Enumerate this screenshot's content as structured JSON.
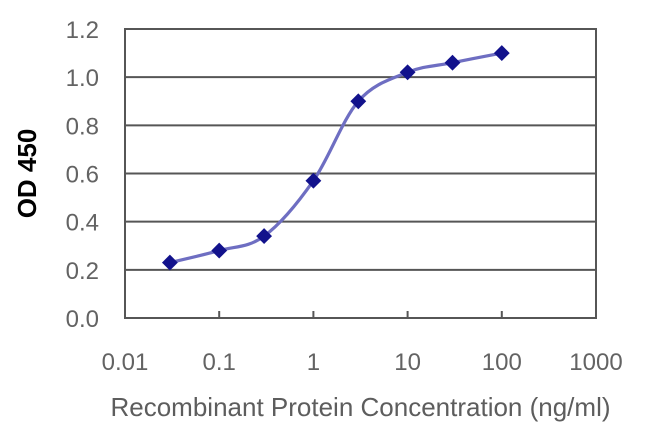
{
  "figure": {
    "background": "#ffffff"
  },
  "chart_data": {
    "type": "line",
    "title": "",
    "xlabel": "Recombinant Protein Concentration (ng/ml)",
    "ylabel": "OD 450",
    "x_scale": "log",
    "xlim": [
      0.01,
      1000
    ],
    "ylim": [
      0.0,
      1.2
    ],
    "x_tick_labels": [
      "0.01",
      "0.1",
      "1",
      "10",
      "100",
      "1000"
    ],
    "x_tick_values": [
      0.01,
      0.1,
      1,
      10,
      100,
      1000
    ],
    "y_tick_labels": [
      "0.0",
      "0.2",
      "0.4",
      "0.6",
      "0.8",
      "1.0",
      "1.2"
    ],
    "y_tick_values": [
      0.0,
      0.2,
      0.4,
      0.6,
      0.8,
      1.0,
      1.2
    ],
    "grid": "horizontal",
    "legend": "none",
    "series": [
      {
        "name": "OD 450",
        "x": [
          0.03,
          0.1,
          0.3,
          1,
          3,
          10,
          30,
          100
        ],
        "y": [
          0.23,
          0.28,
          0.34,
          0.57,
          0.9,
          1.02,
          1.06,
          1.1
        ],
        "marker": "diamond",
        "smooth": true,
        "line_color": "#6e6ec2",
        "marker_color": "#12128c"
      }
    ],
    "colors": {
      "axis": "#565656",
      "grid": "#565656",
      "tick_label": "#636363",
      "axis_title": "#5d5d5d",
      "y_axis_title": "#000000",
      "plot_background": "#ffffff"
    }
  }
}
